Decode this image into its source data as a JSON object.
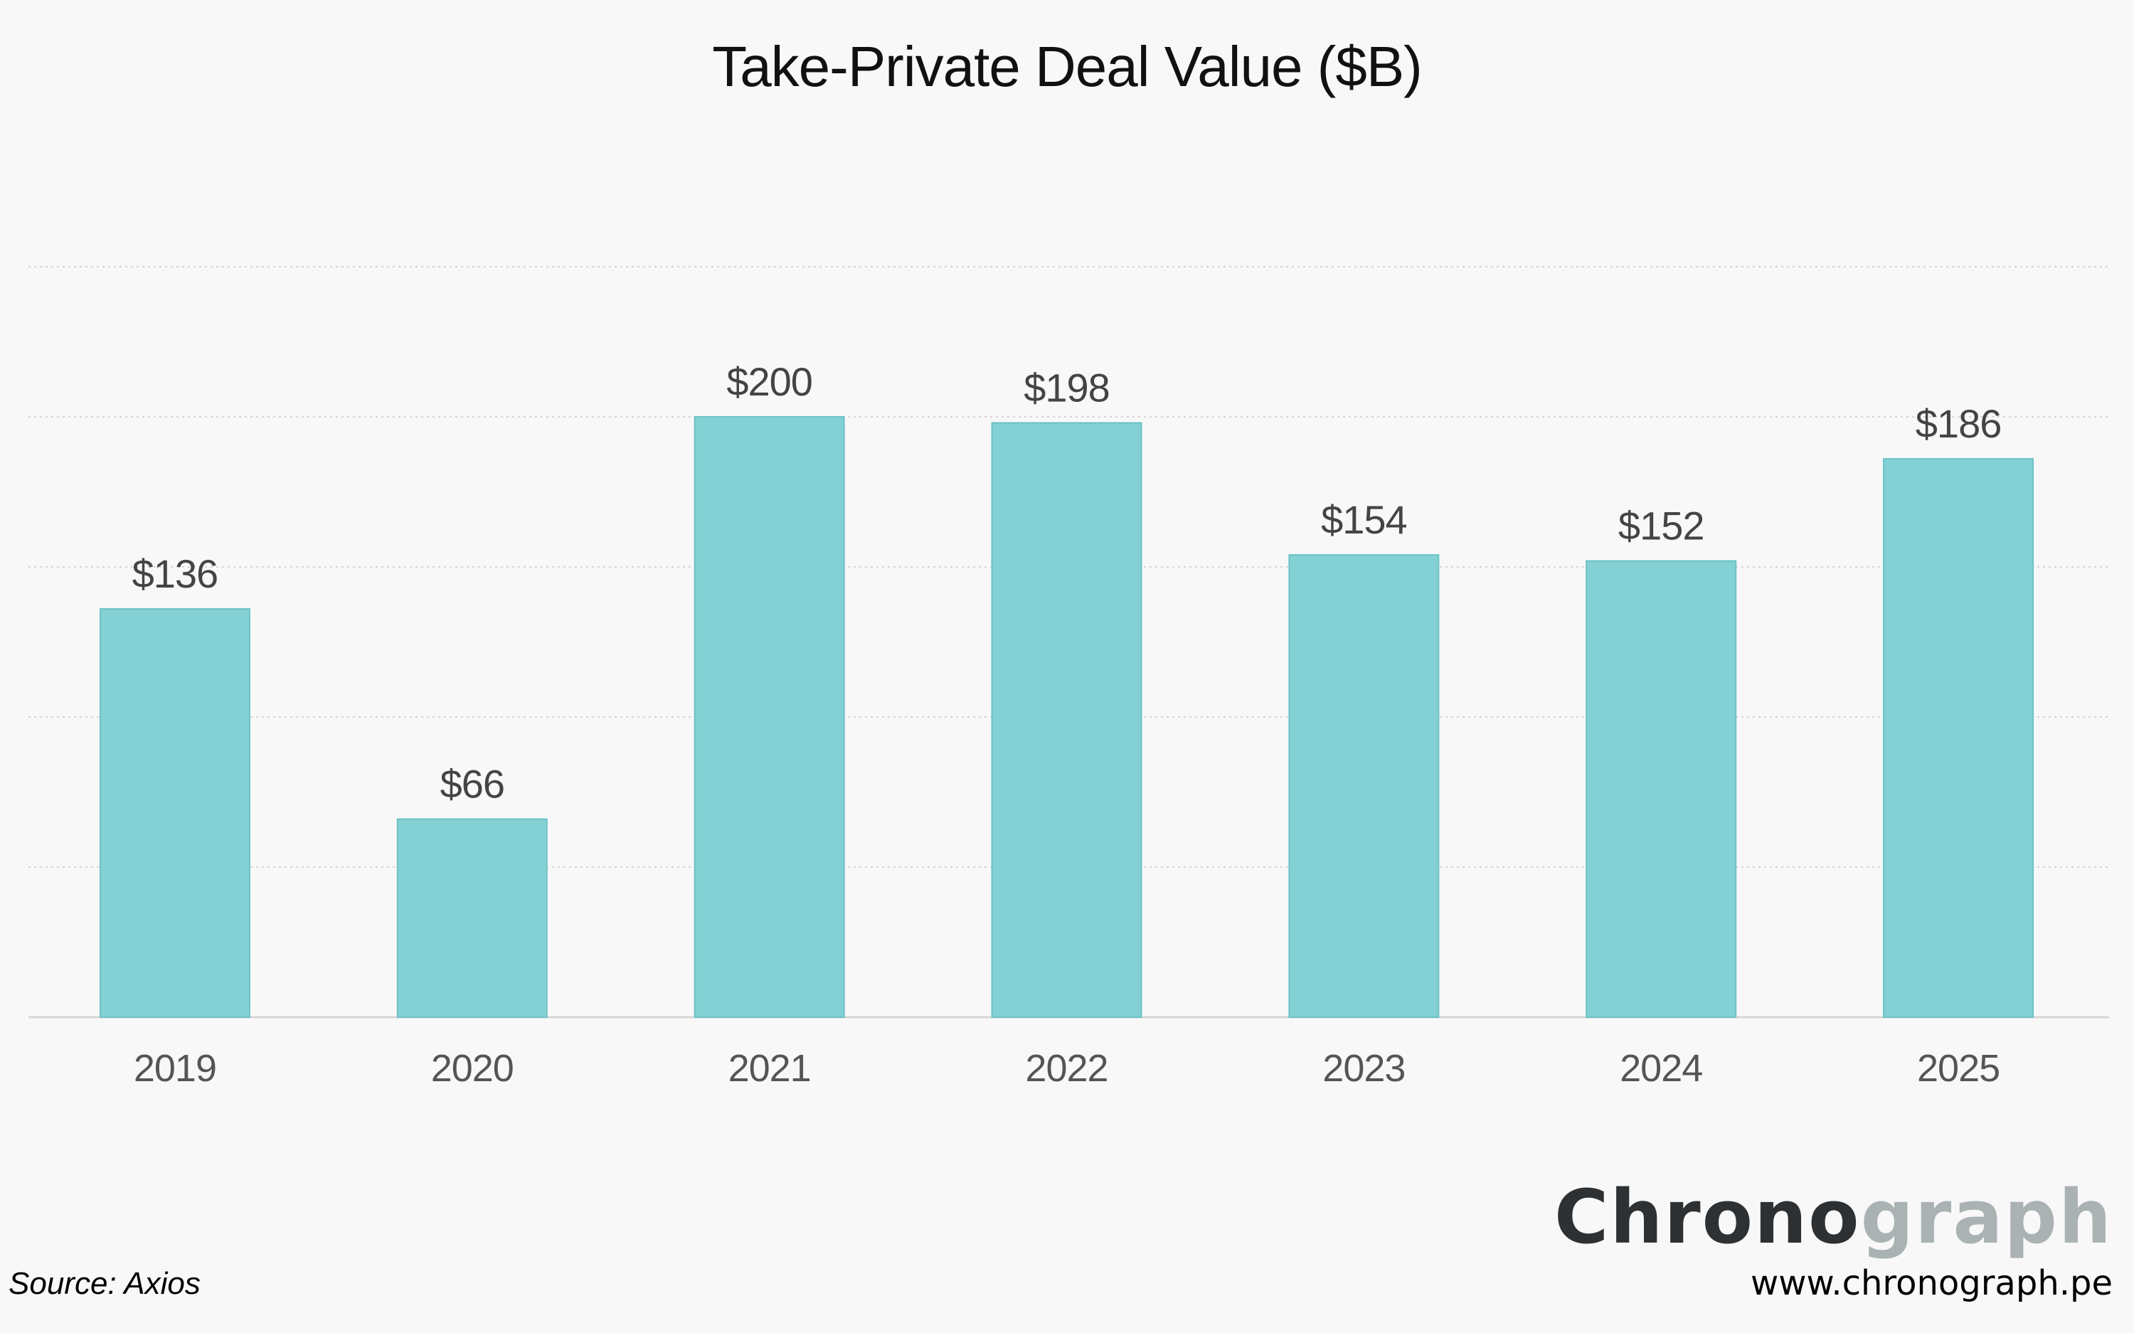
{
  "chart_data": {
    "type": "bar",
    "title": "Take-Private Deal Value ($B)",
    "categories": [
      "2019",
      "2020",
      "2021",
      "2022",
      "2023",
      "2024",
      "2025"
    ],
    "values": [
      136,
      66,
      200,
      198,
      154,
      152,
      186
    ],
    "data_labels": [
      "$136",
      "$66",
      "$200",
      "$198",
      "$154",
      "$152",
      "$186"
    ],
    "xlabel": "",
    "ylabel": "",
    "ylim": [
      0,
      250
    ],
    "y_gridlines": [
      50,
      100,
      150,
      200,
      250
    ],
    "grid": true,
    "legend": "none",
    "bar_color": "#83d1d4",
    "bar_edge_color": "#6cc2c6"
  },
  "footer": {
    "source": "Source: Axios",
    "brand_part1": "Chrono",
    "brand_part2": "graph",
    "website": "www.chronograph.pe"
  }
}
